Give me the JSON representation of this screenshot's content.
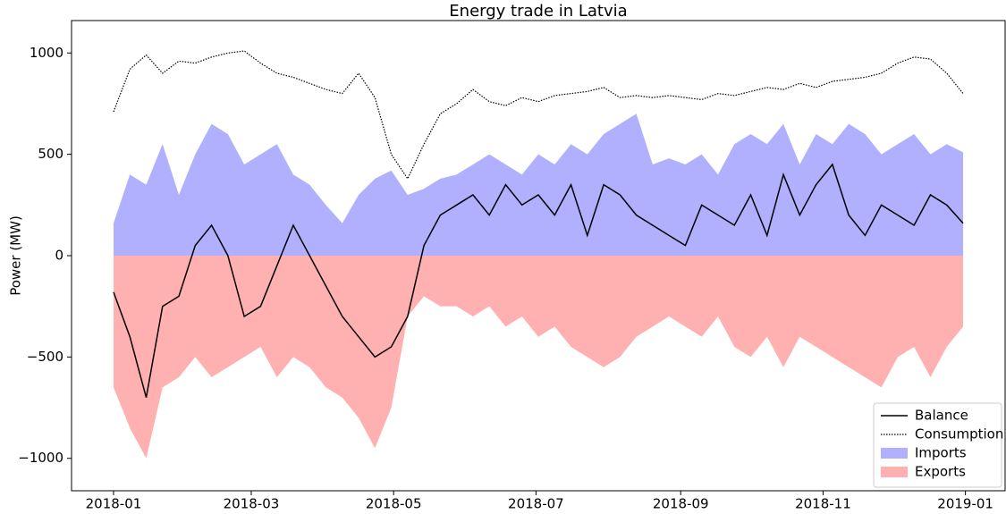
{
  "chart_data": {
    "type": "line",
    "title": "Energy trade in Latvia",
    "y_label": "Power (MW)",
    "x": [
      "2018-01-01",
      "2018-01-08",
      "2018-01-15",
      "2018-01-22",
      "2018-01-29",
      "2018-02-05",
      "2018-02-12",
      "2018-02-19",
      "2018-02-26",
      "2018-03-05",
      "2018-03-12",
      "2018-03-19",
      "2018-03-26",
      "2018-04-02",
      "2018-04-09",
      "2018-04-16",
      "2018-04-23",
      "2018-04-30",
      "2018-05-07",
      "2018-05-14",
      "2018-05-21",
      "2018-05-28",
      "2018-06-04",
      "2018-06-11",
      "2018-06-18",
      "2018-06-25",
      "2018-07-02",
      "2018-07-09",
      "2018-07-16",
      "2018-07-23",
      "2018-07-30",
      "2018-08-06",
      "2018-08-13",
      "2018-08-20",
      "2018-08-27",
      "2018-09-03",
      "2018-09-10",
      "2018-09-17",
      "2018-09-24",
      "2018-10-01",
      "2018-10-08",
      "2018-10-15",
      "2018-10-22",
      "2018-10-29",
      "2018-11-05",
      "2018-11-12",
      "2018-11-19",
      "2018-11-26",
      "2018-12-03",
      "2018-12-10",
      "2018-12-17",
      "2018-12-24",
      "2018-12-31"
    ],
    "series": [
      {
        "name": "Balance",
        "kind": "line",
        "color": "#000000",
        "dash": false,
        "values": [
          -180,
          -400,
          -700,
          -250,
          -200,
          50,
          150,
          0,
          -300,
          -250,
          -50,
          150,
          0,
          -150,
          -300,
          -400,
          -500,
          -450,
          -300,
          50,
          200,
          250,
          300,
          200,
          350,
          250,
          300,
          200,
          350,
          100,
          350,
          300,
          200,
          150,
          100,
          50,
          250,
          200,
          150,
          300,
          100,
          400,
          200,
          350,
          450,
          200,
          100,
          250,
          200,
          150,
          300,
          250,
          160
        ]
      },
      {
        "name": "Consumption",
        "kind": "line",
        "color": "#000000",
        "dash": true,
        "values": [
          710,
          920,
          990,
          900,
          960,
          950,
          980,
          1000,
          1010,
          950,
          900,
          880,
          850,
          820,
          800,
          900,
          780,
          500,
          380,
          550,
          700,
          750,
          820,
          760,
          740,
          780,
          760,
          790,
          800,
          810,
          830,
          780,
          790,
          780,
          790,
          780,
          770,
          800,
          790,
          810,
          830,
          820,
          850,
          830,
          860,
          870,
          880,
          900,
          950,
          980,
          970,
          900,
          800
        ]
      },
      {
        "name": "Imports",
        "kind": "area",
        "color": "#b0b0ff",
        "values": [
          160,
          400,
          350,
          550,
          300,
          500,
          650,
          600,
          450,
          500,
          550,
          400,
          350,
          250,
          160,
          300,
          380,
          420,
          300,
          330,
          380,
          400,
          450,
          500,
          450,
          400,
          500,
          450,
          550,
          500,
          600,
          650,
          700,
          450,
          480,
          450,
          500,
          400,
          550,
          600,
          550,
          650,
          450,
          600,
          550,
          650,
          600,
          500,
          550,
          600,
          500,
          550,
          510
        ]
      },
      {
        "name": "Exports",
        "kind": "area",
        "color": "#ffb0b0",
        "values": [
          -650,
          -850,
          -1000,
          -650,
          -600,
          -500,
          -600,
          -550,
          -500,
          -450,
          -600,
          -500,
          -550,
          -650,
          -700,
          -800,
          -950,
          -750,
          -300,
          -200,
          -250,
          -250,
          -300,
          -250,
          -350,
          -300,
          -400,
          -350,
          -450,
          -500,
          -550,
          -500,
          -400,
          -350,
          -300,
          -350,
          -400,
          -300,
          -450,
          -500,
          -400,
          -550,
          -400,
          -450,
          -500,
          -550,
          -600,
          -650,
          -500,
          -450,
          -600,
          -450,
          -350
        ]
      }
    ],
    "xlim": [
      "2017-12-14",
      "2019-01-18"
    ],
    "xticks": [
      {
        "value": "2018-01-01",
        "label": "2018-01"
      },
      {
        "value": "2018-03-01",
        "label": "2018-03"
      },
      {
        "value": "2018-05-01",
        "label": "2018-05"
      },
      {
        "value": "2018-07-01",
        "label": "2018-07"
      },
      {
        "value": "2018-09-01",
        "label": "2018-09"
      },
      {
        "value": "2018-11-01",
        "label": "2018-11"
      },
      {
        "value": "2019-01-01",
        "label": "2019-01"
      }
    ],
    "ylim": [
      -1160,
      1160
    ],
    "yticks": [
      {
        "value": -1000,
        "label": "−1000"
      },
      {
        "value": -500,
        "label": "−500"
      },
      0,
      500,
      1000
    ],
    "legend": "lower right"
  }
}
